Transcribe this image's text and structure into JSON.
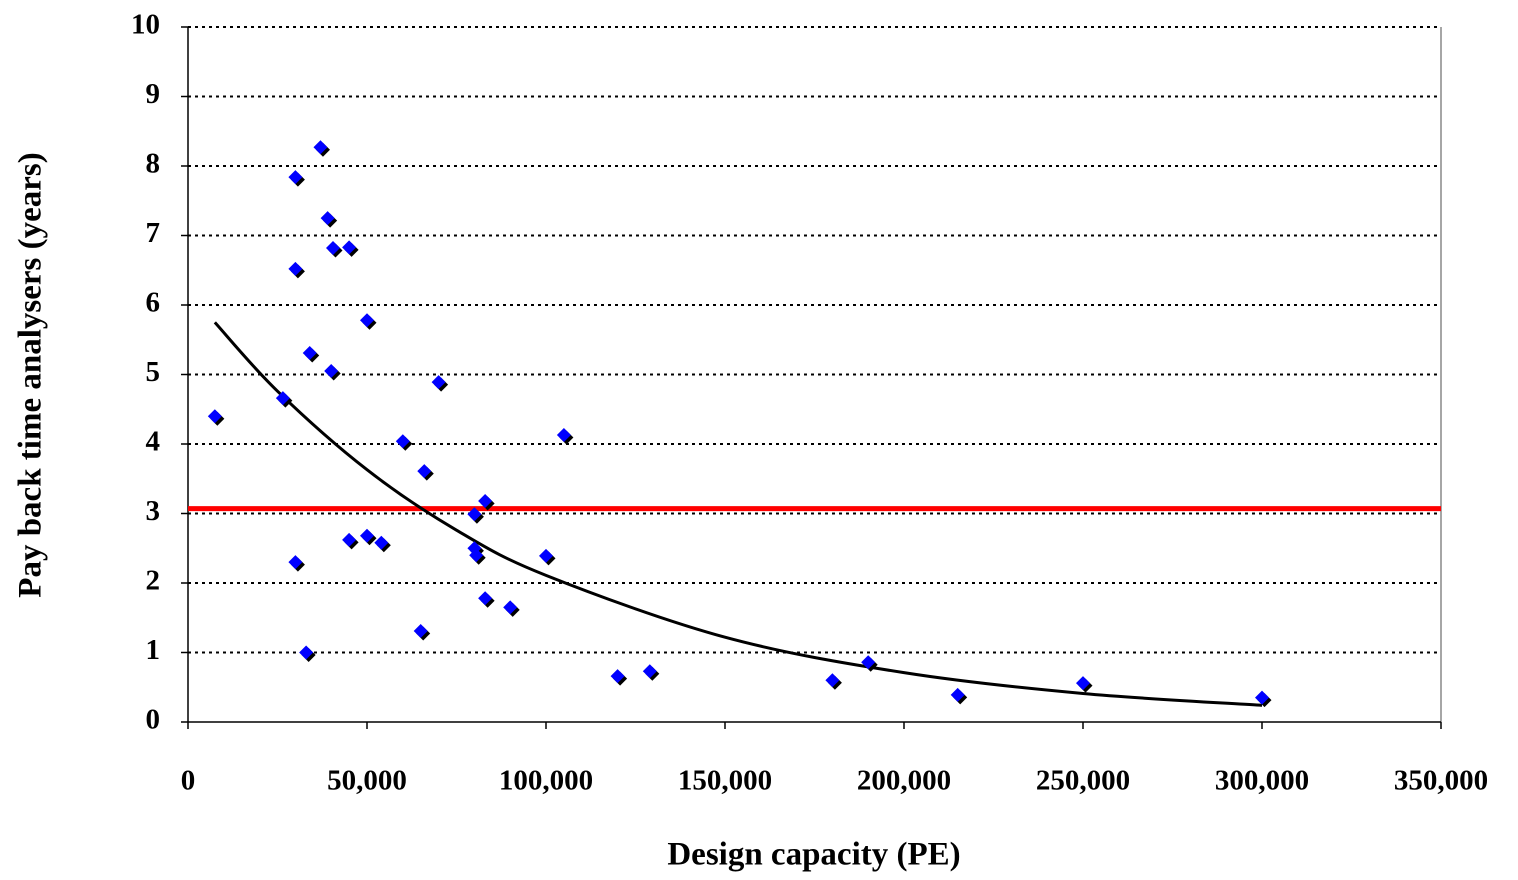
{
  "chart_data": {
    "type": "scatter",
    "x_label": "Design capacity (PE)",
    "y_label": "Pay back time analysers (years)",
    "xlim": [
      0,
      350000
    ],
    "ylim": [
      0,
      10
    ],
    "xticks": [
      0,
      {
        "value": 50000,
        "label": "50,000"
      },
      {
        "value": 100000,
        "label": "100,000"
      },
      {
        "value": 150000,
        "label": "150,000"
      },
      {
        "value": 200000,
        "label": "200,000"
      },
      {
        "value": 250000,
        "label": "250,000"
      },
      {
        "value": 300000,
        "label": "300,000"
      },
      {
        "value": 350000,
        "label": "350,000"
      }
    ],
    "yticks": [
      0,
      1,
      2,
      3,
      4,
      5,
      6,
      7,
      8,
      9,
      10
    ],
    "grid": true,
    "series": [
      {
        "color": "#0000ff",
        "x": [
          7500,
          26500,
          30000,
          30000,
          30000,
          34000,
          33000,
          37000,
          39000,
          40500,
          45000,
          40000,
          50000,
          45000,
          50000,
          54000,
          60000,
          66000,
          65000,
          70000,
          83000,
          80000,
          80000,
          80500,
          83000,
          90000,
          100000,
          105000,
          120000,
          129000,
          180000,
          190000,
          215000,
          250000,
          300000
        ],
        "values": [
          4.4,
          4.66,
          7.84,
          6.52,
          2.3,
          5.31,
          1.0,
          8.27,
          7.25,
          6.82,
          6.83,
          5.05,
          5.78,
          2.62,
          2.68,
          2.58,
          4.04,
          3.61,
          1.31,
          4.89,
          3.18,
          2.99,
          2.5,
          2.4,
          1.78,
          1.65,
          2.39,
          4.13,
          0.66,
          0.73,
          0.6,
          0.86,
          0.39,
          0.56,
          0.35
        ]
      }
    ],
    "trendline": {
      "color": "#000000",
      "x": [
        7500,
        25000,
        50000,
        75000,
        100000,
        150000,
        200000,
        250000,
        300000
      ],
      "values": [
        5.75,
        4.76,
        3.63,
        2.76,
        2.11,
        1.22,
        0.71,
        0.41,
        0.24
      ]
    },
    "reference_line": {
      "value": 3.07,
      "color": "#ff0000"
    }
  }
}
